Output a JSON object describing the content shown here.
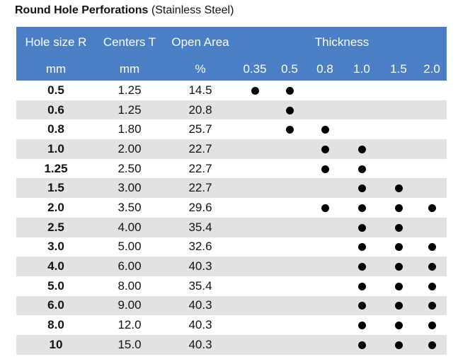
{
  "title": {
    "bold": "Round Hole Perforations",
    "normal": "(Stainless Steel)"
  },
  "headers": {
    "hole_size": "Hole size R",
    "centers": "Centers T",
    "open_area": "Open Area",
    "thickness": "Thickness",
    "unit_hole": "mm",
    "unit_centers": "mm",
    "unit_open": "%",
    "thickness_values": [
      "0.35",
      "0.5",
      "0.8",
      "1.0",
      "1.5",
      "2.0"
    ]
  },
  "rows": [
    {
      "hole": "0.5",
      "centers": "1.25",
      "open": "14.5",
      "avail": [
        true,
        true,
        false,
        false,
        false,
        false
      ]
    },
    {
      "hole": "0.6",
      "centers": "1.25",
      "open": "20.8",
      "avail": [
        false,
        true,
        false,
        false,
        false,
        false
      ]
    },
    {
      "hole": "0.8",
      "centers": "1.80",
      "open": "25.7",
      "avail": [
        false,
        true,
        true,
        false,
        false,
        false
      ]
    },
    {
      "hole": "1.0",
      "centers": "2.00",
      "open": "22.7",
      "avail": [
        false,
        false,
        true,
        true,
        false,
        false
      ]
    },
    {
      "hole": "1.25",
      "centers": "2.50",
      "open": "22.7",
      "avail": [
        false,
        false,
        true,
        true,
        false,
        false
      ]
    },
    {
      "hole": "1.5",
      "centers": "3.00",
      "open": "22.7",
      "avail": [
        false,
        false,
        false,
        true,
        true,
        false
      ]
    },
    {
      "hole": "2.0",
      "centers": "3.50",
      "open": "29.6",
      "avail": [
        false,
        false,
        true,
        true,
        true,
        true
      ]
    },
    {
      "hole": "2.5",
      "centers": "4.00",
      "open": "35.4",
      "avail": [
        false,
        false,
        false,
        true,
        true,
        false
      ]
    },
    {
      "hole": "3.0",
      "centers": "5.00",
      "open": "32.6",
      "avail": [
        false,
        false,
        false,
        true,
        true,
        true
      ]
    },
    {
      "hole": "4.0",
      "centers": "6.00",
      "open": "40.3",
      "avail": [
        false,
        false,
        false,
        true,
        true,
        true
      ]
    },
    {
      "hole": "5.0",
      "centers": "8.00",
      "open": "35.4",
      "avail": [
        false,
        false,
        false,
        true,
        true,
        true
      ]
    },
    {
      "hole": "6.0",
      "centers": "9.00",
      "open": "40.3",
      "avail": [
        false,
        false,
        false,
        true,
        true,
        true
      ]
    },
    {
      "hole": "8.0",
      "centers": "12.0",
      "open": "40.3",
      "avail": [
        false,
        false,
        false,
        true,
        true,
        true
      ]
    },
    {
      "hole": "10",
      "centers": "15.0",
      "open": "40.3",
      "avail": [
        false,
        false,
        false,
        true,
        true,
        true
      ]
    }
  ],
  "colors": {
    "header_bg": "#4a7fc6",
    "stripe": "#e2e2e2"
  }
}
